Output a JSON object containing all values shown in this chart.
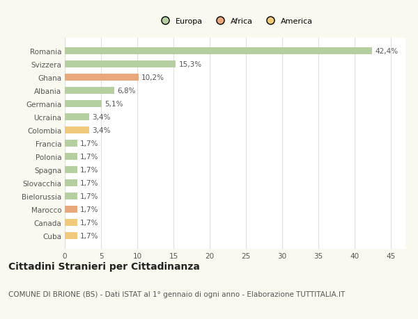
{
  "categories": [
    "Romania",
    "Svizzera",
    "Ghana",
    "Albania",
    "Germania",
    "Ucraina",
    "Colombia",
    "Francia",
    "Polonia",
    "Spagna",
    "Slovacchia",
    "Bielorussia",
    "Marocco",
    "Canada",
    "Cuba"
  ],
  "values": [
    42.4,
    15.3,
    10.2,
    6.8,
    5.1,
    3.4,
    3.4,
    1.7,
    1.7,
    1.7,
    1.7,
    1.7,
    1.7,
    1.7,
    1.7
  ],
  "labels": [
    "42,4%",
    "15,3%",
    "10,2%",
    "6,8%",
    "5,1%",
    "3,4%",
    "3,4%",
    "1,7%",
    "1,7%",
    "1,7%",
    "1,7%",
    "1,7%",
    "1,7%",
    "1,7%",
    "1,7%"
  ],
  "colors": [
    "#b5cfa0",
    "#b5cfa0",
    "#e8a87c",
    "#b5cfa0",
    "#b5cfa0",
    "#b5cfa0",
    "#f0c97a",
    "#b5cfa0",
    "#b5cfa0",
    "#b5cfa0",
    "#b5cfa0",
    "#b5cfa0",
    "#e8a87c",
    "#f0c97a",
    "#f0c97a"
  ],
  "legend_labels": [
    "Europa",
    "Africa",
    "America"
  ],
  "legend_colors": [
    "#b5cfa0",
    "#e8a87c",
    "#f0c97a"
  ],
  "xlim": [
    0,
    47
  ],
  "xticks": [
    0,
    5,
    10,
    15,
    20,
    25,
    30,
    35,
    40,
    45
  ],
  "title": "Cittadini Stranieri per Cittadinanza",
  "subtitle": "COMUNE DI BRIONE (BS) - Dati ISTAT al 1° gennaio di ogni anno - Elaborazione TUTTITALIA.IT",
  "bg_color": "#f9f9f0",
  "plot_bg_color": "#ffffff",
  "grid_color": "#e0e0d0",
  "text_color": "#555555",
  "title_fontsize": 10,
  "subtitle_fontsize": 7.5,
  "label_fontsize": 7.5,
  "bar_label_fontsize": 7.5,
  "bar_height": 0.55
}
